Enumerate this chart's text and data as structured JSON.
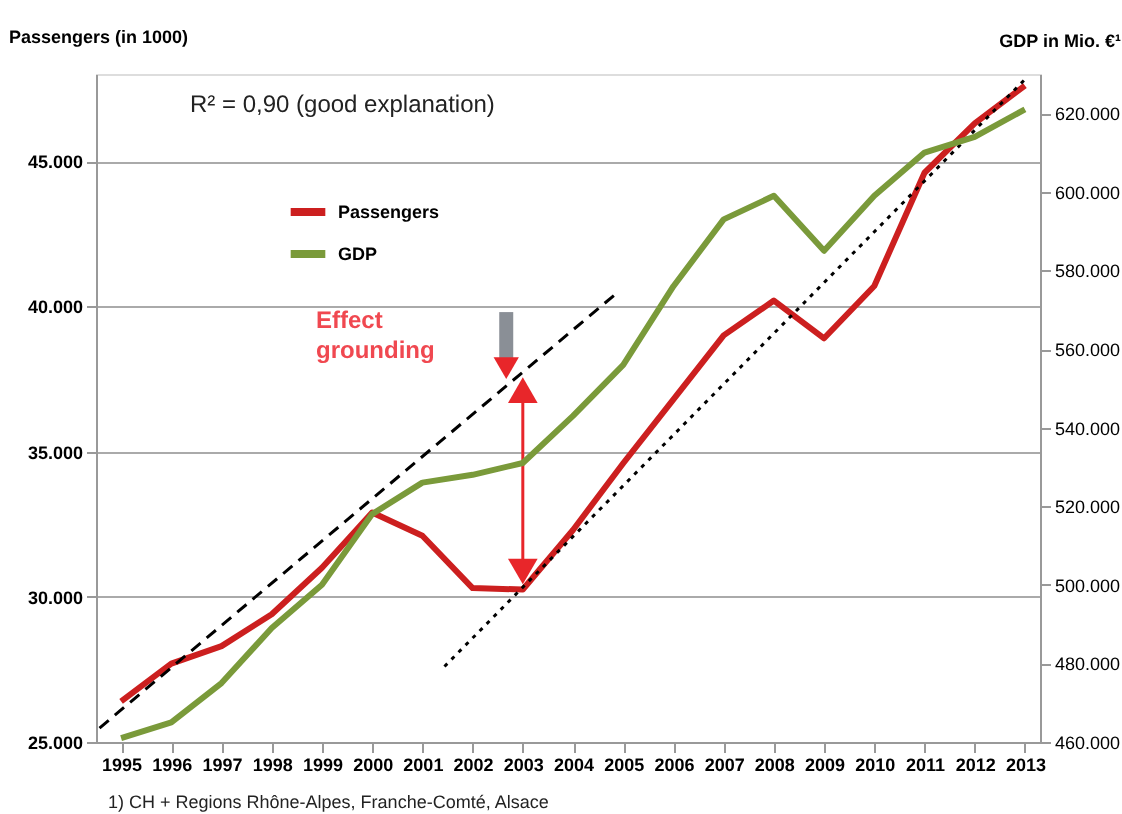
{
  "chart_data": {
    "type": "line",
    "ylabel": "Passengers (in 1000)",
    "y2label": "GDP in Mio. €¹",
    "x": [
      1995,
      1996,
      1997,
      1998,
      1999,
      2000,
      2001,
      2002,
      2003,
      2004,
      2005,
      2006,
      2007,
      2008,
      2009,
      2010,
      2011,
      2012,
      2013
    ],
    "xlim": [
      1994.5,
      2013.3
    ],
    "xticks": [
      1995,
      1996,
      1997,
      1998,
      1999,
      2000,
      2001,
      2002,
      2003,
      2004,
      2005,
      2006,
      2007,
      2008,
      2009,
      2010,
      2011,
      2012,
      2013
    ],
    "ylim": [
      25000,
      48000
    ],
    "yticks": [
      {
        "value": 25000,
        "label": "25.000"
      },
      {
        "value": 30000,
        "label": "30.000"
      },
      {
        "value": 35000,
        "label": "35.000"
      },
      {
        "value": 40000,
        "label": "40.000"
      },
      {
        "value": 45000,
        "label": "45.000"
      }
    ],
    "y2lim": [
      460000,
      630000
    ],
    "y2ticks": [
      {
        "value": 460000,
        "label": "460.000"
      },
      {
        "value": 480000,
        "label": "480.000"
      },
      {
        "value": 500000,
        "label": "500.000"
      },
      {
        "value": 520000,
        "label": "520.000"
      },
      {
        "value": 540000,
        "label": "540.000"
      },
      {
        "value": 560000,
        "label": "560.000"
      },
      {
        "value": 580000,
        "label": "580.000"
      },
      {
        "value": 600000,
        "label": "600.000"
      },
      {
        "value": 620000,
        "label": "620.000"
      }
    ],
    "series": [
      {
        "name": "Passengers",
        "color": "#cc1f1f",
        "axis": "y",
        "values": [
          26400,
          27700,
          28300,
          29400,
          31000,
          32900,
          32100,
          30300,
          30250,
          32300,
          34600,
          36800,
          39000,
          40200,
          38900,
          40700,
          44600,
          46300,
          47600
        ]
      },
      {
        "name": "GDP",
        "color": "#7a9a3a",
        "axis": "y2",
        "values": [
          461000,
          465000,
          475000,
          489000,
          500000,
          518000,
          526000,
          528000,
          531000,
          543000,
          556000,
          576000,
          593000,
          599000,
          585000,
          599000,
          610000,
          614000,
          621000
        ]
      },
      {
        "type": "line",
        "color": "#000000",
        "line_style": "dashed",
        "axis": "y",
        "x": [
          1994.57,
          2004.88
        ],
        "values": [
          25480,
          40470
        ]
      },
      {
        "type": "line",
        "color": "#000000",
        "line_style": "dotted",
        "axis": "y",
        "x": [
          2001.44,
          2013.05
        ],
        "values": [
          27600,
          47900
        ]
      }
    ],
    "annotations": [
      "R² = 0,90 (good explanation)",
      "Effect grounding",
      "1) CH + Regions Rhône-Alpes, Franche-Comté, Alsace"
    ],
    "grid": "y",
    "legend": "top left",
    "line_style": "solid",
    "marker": "none"
  }
}
